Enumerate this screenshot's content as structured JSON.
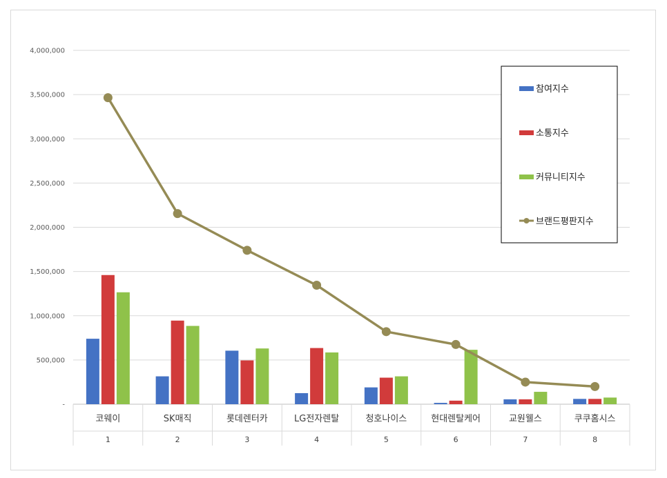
{
  "chart_data": {
    "type": "bar",
    "categories": [
      "코웨이",
      "SK매직",
      "롯데렌터카",
      "LG전자렌탈",
      "청호나이스",
      "현대렌탈케어",
      "교원웰스",
      "쿠쿠홈시스"
    ],
    "category_index": [
      "1",
      "2",
      "3",
      "4",
      "5",
      "6",
      "7",
      "8"
    ],
    "series": [
      {
        "name": "참여지수",
        "kind": "bar",
        "color": "#4472c4",
        "values": [
          740000,
          315000,
          605000,
          125000,
          190000,
          15000,
          55000,
          60000
        ]
      },
      {
        "name": "소통지수",
        "kind": "bar",
        "color": "#d13b3b",
        "values": [
          1460000,
          945000,
          495000,
          635000,
          300000,
          40000,
          55000,
          60000
        ]
      },
      {
        "name": "커뮤니티지수",
        "kind": "bar",
        "color": "#8fc24a",
        "values": [
          1265000,
          885000,
          630000,
          585000,
          315000,
          615000,
          140000,
          75000
        ]
      },
      {
        "name": "브랜드평판지수",
        "kind": "line",
        "color": "#958b55",
        "values": [
          3465000,
          2155000,
          1740000,
          1345000,
          820000,
          675000,
          250000,
          200000
        ]
      }
    ],
    "ylim": [
      0,
      4000000
    ],
    "yticks": [
      0,
      500000,
      1000000,
      1500000,
      2000000,
      2500000,
      3000000,
      3500000,
      4000000
    ],
    "ytick_labels": [
      "-",
      "500,000",
      "1,000,000",
      "1,500,000",
      "2,000,000",
      "2,500,000",
      "3,000,000",
      "3,500,000",
      "4,000,000"
    ],
    "grid": true,
    "legend": "right"
  }
}
